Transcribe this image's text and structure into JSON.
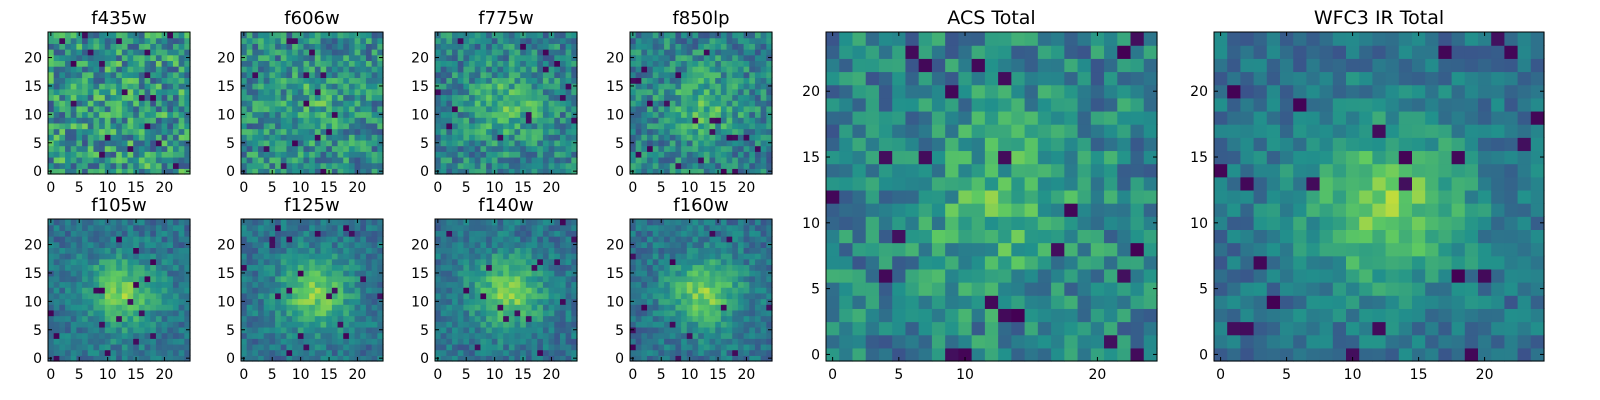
{
  "figure": {
    "colormap": "viridis",
    "colors": [
      "#440154",
      "#3b528b",
      "#21918c",
      "#5ec962",
      "#fde725"
    ]
  },
  "chart_data": [
    {
      "type": "heatmap",
      "title": "f435w",
      "grid_size": 25,
      "xlim": [
        -0.5,
        24.5
      ],
      "ylim": [
        -0.5,
        24.5
      ],
      "xticks": [
        0,
        5,
        10,
        15,
        20
      ],
      "yticks": [
        0,
        5,
        10,
        15,
        20
      ],
      "pattern": "noise"
    },
    {
      "type": "heatmap",
      "title": "f606w",
      "grid_size": 25,
      "xlim": [
        -0.5,
        24.5
      ],
      "ylim": [
        -0.5,
        24.5
      ],
      "xticks": [
        0,
        5,
        10,
        15,
        20
      ],
      "yticks": [
        0,
        5,
        10,
        15,
        20
      ],
      "pattern": "noise with faint central source"
    },
    {
      "type": "heatmap",
      "title": "f775w",
      "grid_size": 25,
      "xlim": [
        -0.5,
        24.5
      ],
      "ylim": [
        -0.5,
        24.5
      ],
      "xticks": [
        0,
        5,
        10,
        15,
        20
      ],
      "yticks": [
        0,
        5,
        10,
        15,
        20
      ],
      "pattern": "noise with central source"
    },
    {
      "type": "heatmap",
      "title": "f850lp",
      "grid_size": 25,
      "xlim": [
        -0.5,
        24.5
      ],
      "ylim": [
        -0.5,
        24.5
      ],
      "xticks": [
        0,
        5,
        10,
        15,
        20
      ],
      "yticks": [
        0,
        5,
        10,
        15,
        20
      ],
      "pattern": "noise with central source"
    },
    {
      "type": "heatmap",
      "title": "f105w",
      "grid_size": 25,
      "xlim": [
        -0.5,
        24.5
      ],
      "ylim": [
        -0.5,
        24.5
      ],
      "xticks": [
        0,
        5,
        10,
        15,
        20
      ],
      "yticks": [
        0,
        5,
        10,
        15,
        20
      ],
      "pattern": "bright central source"
    },
    {
      "type": "heatmap",
      "title": "f125w",
      "grid_size": 25,
      "xlim": [
        -0.5,
        24.5
      ],
      "ylim": [
        -0.5,
        24.5
      ],
      "xticks": [
        0,
        5,
        10,
        15,
        20
      ],
      "yticks": [
        0,
        5,
        10,
        15,
        20
      ],
      "pattern": "bright central source"
    },
    {
      "type": "heatmap",
      "title": "f140w",
      "grid_size": 25,
      "xlim": [
        -0.5,
        24.5
      ],
      "ylim": [
        -0.5,
        24.5
      ],
      "xticks": [
        0,
        5,
        10,
        15,
        20
      ],
      "yticks": [
        0,
        5,
        10,
        15,
        20
      ],
      "pattern": "bright central source"
    },
    {
      "type": "heatmap",
      "title": "f160w",
      "grid_size": 25,
      "xlim": [
        -0.5,
        24.5
      ],
      "ylim": [
        -0.5,
        24.5
      ],
      "xticks": [
        0,
        5,
        10,
        15,
        20
      ],
      "yticks": [
        0,
        5,
        10,
        15,
        20
      ],
      "pattern": "bright central source"
    },
    {
      "type": "heatmap",
      "title": "ACS Total",
      "grid_size": 25,
      "xlim": [
        -0.5,
        24.5
      ],
      "ylim": [
        -0.5,
        24.5
      ],
      "xticks": [
        0,
        5,
        10,
        20
      ],
      "yticks": [
        0,
        5,
        10,
        15,
        20
      ],
      "pattern": "noise with central source"
    },
    {
      "type": "heatmap",
      "title": "WFC3 IR Total",
      "grid_size": 25,
      "xlim": [
        -0.5,
        24.5
      ],
      "ylim": [
        -0.5,
        24.5
      ],
      "xticks": [
        0,
        5,
        10,
        15,
        20
      ],
      "yticks": [
        0,
        5,
        10,
        15,
        20
      ],
      "pattern": "bright central source"
    }
  ]
}
